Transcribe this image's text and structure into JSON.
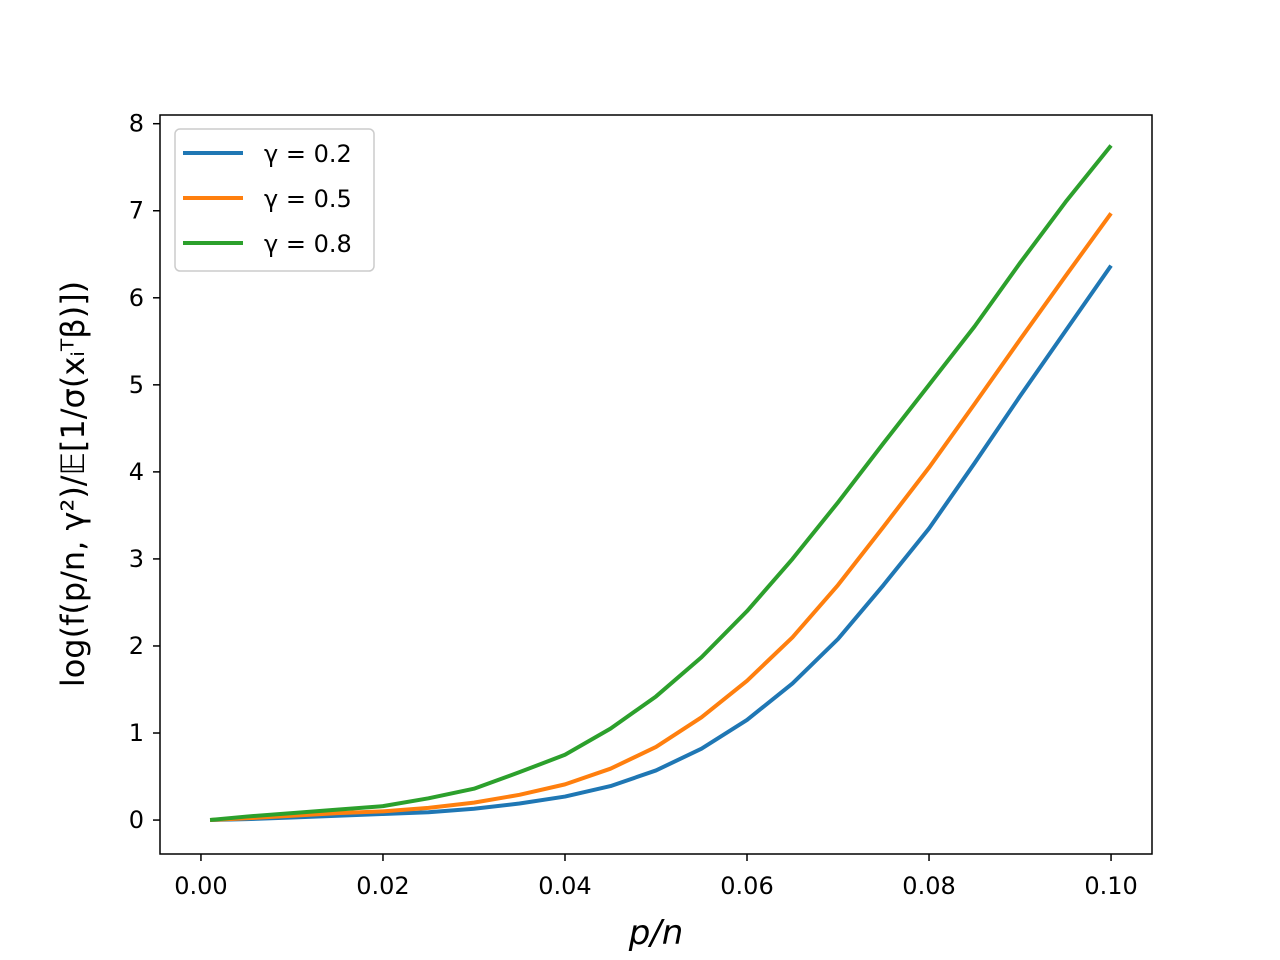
{
  "chart_data": {
    "type": "line",
    "xlabel": "p/n",
    "ylabel": "log(f(p/n, γ²)/𝔼[1/σ(xᵢᵀβ)])",
    "xlim": [
      -0.0045,
      0.1045
    ],
    "ylim": [
      -0.39,
      8.1
    ],
    "xticks": [
      0.0,
      0.02,
      0.04,
      0.06,
      0.08,
      0.1
    ],
    "xtick_labels": [
      "0.00",
      "0.02",
      "0.04",
      "0.06",
      "0.08",
      "0.10"
    ],
    "yticks": [
      0,
      1,
      2,
      3,
      4,
      5,
      6,
      7,
      8
    ],
    "ytick_labels": [
      "0",
      "1",
      "2",
      "3",
      "4",
      "5",
      "6",
      "7",
      "8"
    ],
    "grid": false,
    "legend_position": "top-left",
    "x": [
      0.001,
      0.005,
      0.01,
      0.015,
      0.02,
      0.025,
      0.03,
      0.035,
      0.04,
      0.045,
      0.05,
      0.055,
      0.06,
      0.065,
      0.07,
      0.075,
      0.08,
      0.085,
      0.09,
      0.095,
      0.1
    ],
    "series": [
      {
        "name": "γ = 0.2",
        "color": "#1f77b4",
        "values": [
          0.0,
          0.01,
          0.03,
          0.05,
          0.07,
          0.09,
          0.13,
          0.19,
          0.27,
          0.39,
          0.57,
          0.82,
          1.15,
          1.57,
          2.08,
          2.7,
          3.35,
          4.1,
          4.87,
          5.62,
          6.37
        ]
      },
      {
        "name": "γ = 0.5",
        "color": "#ff7f0e",
        "values": [
          0.0,
          0.02,
          0.05,
          0.08,
          0.1,
          0.14,
          0.2,
          0.29,
          0.41,
          0.59,
          0.84,
          1.18,
          1.6,
          2.1,
          2.7,
          3.37,
          4.05,
          4.78,
          5.52,
          6.25,
          6.97
        ]
      },
      {
        "name": "γ = 0.8",
        "color": "#2ca02c",
        "values": [
          0.0,
          0.04,
          0.08,
          0.12,
          0.16,
          0.25,
          0.36,
          0.55,
          0.75,
          1.05,
          1.42,
          1.87,
          2.4,
          3.0,
          3.65,
          4.33,
          5.0,
          5.67,
          6.4,
          7.1,
          7.75
        ]
      }
    ]
  }
}
